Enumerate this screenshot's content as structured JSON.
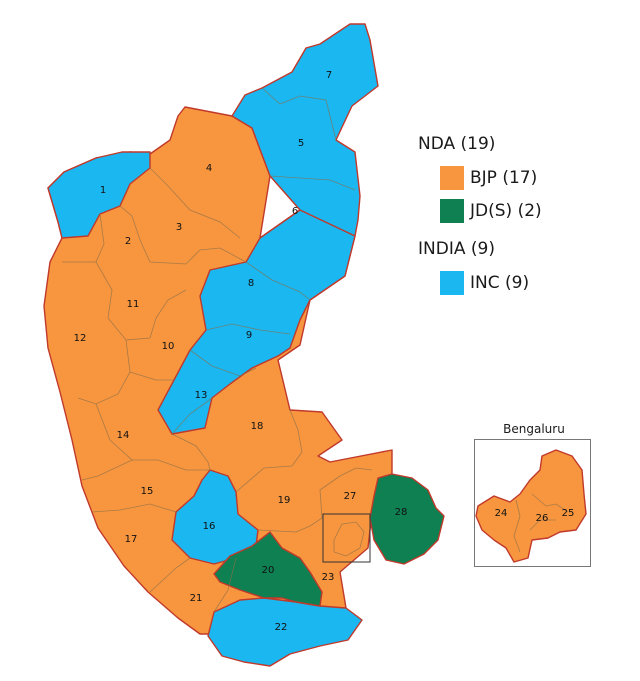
{
  "legend": {
    "nda": {
      "label": "NDA (19)"
    },
    "bjp": {
      "label": "BJP (17)",
      "color": "#f7963f"
    },
    "jds": {
      "label": "JD(S) (2)",
      "color": "#0e8052"
    },
    "india": {
      "label": "INDIA (9)"
    },
    "inc": {
      "label": "INC (9)",
      "color": "#1ab7f0"
    }
  },
  "inset": {
    "title": "Bengaluru"
  },
  "constituencies": [
    {
      "n": "1",
      "party": "inc"
    },
    {
      "n": "2",
      "party": "bjp"
    },
    {
      "n": "3",
      "party": "bjp"
    },
    {
      "n": "4",
      "party": "bjp"
    },
    {
      "n": "5",
      "party": "inc"
    },
    {
      "n": "6",
      "party": "inc"
    },
    {
      "n": "7",
      "party": "inc"
    },
    {
      "n": "8",
      "party": "inc"
    },
    {
      "n": "9",
      "party": "inc"
    },
    {
      "n": "10",
      "party": "bjp"
    },
    {
      "n": "11",
      "party": "bjp"
    },
    {
      "n": "12",
      "party": "bjp"
    },
    {
      "n": "13",
      "party": "inc"
    },
    {
      "n": "14",
      "party": "bjp"
    },
    {
      "n": "15",
      "party": "bjp"
    },
    {
      "n": "16",
      "party": "inc"
    },
    {
      "n": "17",
      "party": "bjp"
    },
    {
      "n": "18",
      "party": "bjp"
    },
    {
      "n": "19",
      "party": "bjp"
    },
    {
      "n": "20",
      "party": "jds"
    },
    {
      "n": "21",
      "party": "bjp"
    },
    {
      "n": "22",
      "party": "inc"
    },
    {
      "n": "23",
      "party": "bjp"
    },
    {
      "n": "24",
      "party": "bjp"
    },
    {
      "n": "25",
      "party": "bjp"
    },
    {
      "n": "26",
      "party": "bjp"
    },
    {
      "n": "27",
      "party": "bjp"
    },
    {
      "n": "28",
      "party": "jds"
    }
  ]
}
